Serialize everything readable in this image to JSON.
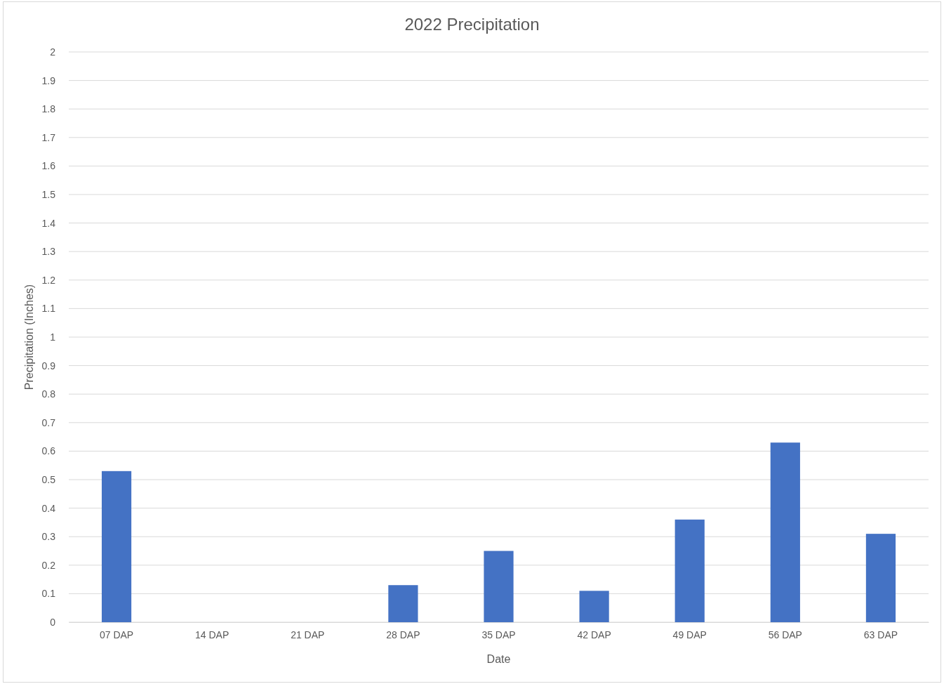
{
  "chart_data": {
    "type": "bar",
    "title": "2022 Precipitation",
    "xlabel": "Date",
    "ylabel": "Precipitation (Inches)",
    "categories": [
      "07 DAP",
      "14 DAP",
      "21 DAP",
      "28 DAP",
      "35 DAP",
      "42 DAP",
      "49 DAP",
      "56 DAP",
      "63 DAP"
    ],
    "values": [
      0.53,
      0,
      0,
      0.13,
      0.25,
      0.11,
      0.36,
      0.63,
      0.31
    ],
    "color": "#4472c4",
    "ylim": [
      0,
      2
    ],
    "yticks": [
      0,
      0.1,
      0.2,
      0.3,
      0.4,
      0.5,
      0.6,
      0.7,
      0.8,
      0.9,
      1,
      1.1,
      1.2,
      1.3,
      1.4,
      1.5,
      1.6,
      1.7,
      1.8,
      1.9,
      2
    ],
    "grid": "y"
  }
}
